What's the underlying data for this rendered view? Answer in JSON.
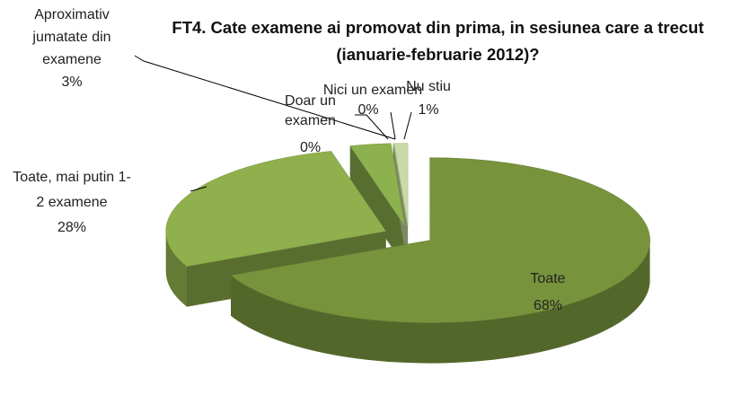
{
  "chart_data": {
    "type": "pie3d",
    "title": "FT4. Cate examene ai promovat din prima, in sesiunea care a trecut (ianuarie-februarie 2012)?",
    "categories": [
      "Toate",
      "Toate, mai putin 1-2 examene",
      "Aproximativ jumatate din examene",
      "Doar un examen",
      "Nici un examen",
      "Nu stiu"
    ],
    "values": [
      68,
      28,
      3,
      0,
      0,
      1
    ],
    "value_labels": [
      "68%",
      "28%",
      "3%",
      "0%",
      "0%",
      "1%"
    ],
    "colors": [
      "#77933c",
      "#8fb04c",
      "#8db14e",
      "#9bbb59",
      "#aac76e",
      "#c9d9a8"
    ],
    "exploded": true
  }
}
